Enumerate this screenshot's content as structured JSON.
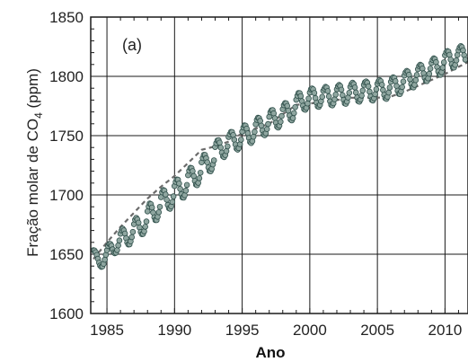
{
  "chart_data": {
    "type": "scatter",
    "panel_label": "(a)",
    "xlabel": "Ano",
    "ylabel": "Fração molar de CO",
    "ylabel_subscript": "4",
    "ylabel_unit": " (ppm)",
    "xlim": [
      1983.8,
      2011.7
    ],
    "ylim": [
      1600,
      1850
    ],
    "x_ticks": [
      1985,
      1990,
      1995,
      2000,
      2005,
      2010
    ],
    "y_ticks": [
      1600,
      1650,
      1700,
      1750,
      1800,
      1850
    ],
    "x_tick_labels": [
      "1985",
      "1990",
      "1995",
      "2000",
      "2005",
      "2010"
    ],
    "y_tick_labels": [
      "1600",
      "1650",
      "1700",
      "1750",
      "1800",
      "1850"
    ],
    "grid": true,
    "seasonal_amplitude_ppm": 8,
    "series": [
      {
        "role": "deseasonalized trend",
        "style": "dashed",
        "color": "#6b6b6b",
        "x": [
          1984.0,
          1985.0,
          1986.0,
          1987.0,
          1988.0,
          1989.0,
          1990.0,
          1991.0,
          1992.0,
          1993.0,
          1994.0,
          1995.0,
          1996.0,
          1997.0,
          1998.0,
          1999.0,
          2000.0,
          2001.0,
          2002.0,
          2003.0,
          2004.0,
          2005.0,
          2006.0,
          2007.0,
          2008.0,
          2009.0,
          2010.0,
          2011.0,
          2011.7
        ],
        "y": [
          1646,
          1660,
          1673,
          1685,
          1697,
          1707,
          1716,
          1727,
          1738,
          1741,
          1745,
          1752,
          1756,
          1760,
          1768,
          1776,
          1777,
          1779,
          1780,
          1782,
          1782,
          1782,
          1783,
          1787,
          1792,
          1797,
          1802,
          1808,
          1812
        ]
      },
      {
        "role": "monthly observations",
        "style": "markers",
        "color": "#8fa6a0",
        "x_start": 1984.0,
        "x_step": 0.0833333,
        "y": [
          1653.3,
          1653.1,
          1651.7,
          1649.3,
          1646.1,
          1642.9,
          1640.4,
          1639.3,
          1639.7,
          1641.9,
          1645.4,
          1649.5,
          1653.3,
          1656.9,
          1658.7,
          1658.7,
          1657.2,
          1654.1,
          1651.6,
          1650.8,
          1651.3,
          1653.5,
          1657.4,
          1661.6,
          1667.3,
          1670.1,
          1671.5,
          1670.1,
          1667.4,
          1663.5,
          1659.9,
          1658.2,
          1658.3,
          1660.8,
          1664.4,
          1668.8,
          1675.3,
          1679.1,
          1680.7,
          1679.4,
          1676.6,
          1672.5,
          1668.8,
          1666.9,
          1667.1,
          1669.3,
          1673.2,
          1677.6,
          1686.1,
          1690.2,
          1692.7,
          1692.2,
          1689.4,
          1685.1,
          1681.1,
          1678.8,
          1678.8,
          1681.6,
          1685.4,
          1689.9,
          1698.1,
          1702.2,
          1704.2,
          1703.6,
          1700.4,
          1696.0,
          1691.5,
          1688.8,
          1688.3,
          1690.4,
          1694.1,
          1698.8,
          1707.5,
          1711.0,
          1713.0,
          1712.8,
          1709.6,
          1705.1,
          1700.7,
          1697.9,
          1697.7,
          1699.8,
          1703.6,
          1708.4,
          1716.6,
          1720.4,
          1722.9,
          1722.6,
          1720.1,
          1715.9,
          1711.8,
          1708.6,
          1708.2,
          1710.2,
          1714.1,
          1718.7,
          1727.5,
          1731.1,
          1733.8,
          1733.8,
          1731.0,
          1727.5,
          1723.2,
          1720.2,
          1719.9,
          1722.0,
          1725.7,
          1729.2,
          1740.4,
          1743.6,
          1745.9,
          1746.1,
          1744.1,
          1739.9,
          1735.7,
          1732.6,
          1731.9,
          1733.6,
          1737.0,
          1741.0,
          1748.9,
          1751.2,
          1753.1,
          1753.0,
          1750.5,
          1746.5,
          1742.6,
          1739.1,
          1738.2,
          1739.5,
          1742.7,
          1746.6,
          1753.4,
          1756.9,
          1758.6,
          1758.4,
          1755.9,
          1752.0,
          1748.0,
          1744.7,
          1743.8,
          1745.4,
          1749.1,
          1753.2,
          1759.6,
          1763.3,
          1765.1,
          1764.8,
          1762.4,
          1758.4,
          1754.3,
          1751.0,
          1750.3,
          1752.0,
          1755.5,
          1759.8,
          1765.9,
          1769.7,
          1771.4,
          1771.5,
          1768.8,
          1764.7,
          1760.8,
          1757.5,
          1756.8,
          1758.4,
          1761.7,
          1766.5,
          1772.3,
          1775.7,
          1777.4,
          1777.3,
          1775.1,
          1771.0,
          1767.0,
          1763.6,
          1762.9,
          1764.8,
          1769.0,
          1774.0,
          1780.2,
          1783.6,
          1786.0,
          1785.8,
          1783.3,
          1779.1,
          1775.2,
          1772.3,
          1771.8,
          1773.4,
          1777.1,
          1781.3,
          1786.4,
          1789.0,
          1789.8,
          1789.1,
          1786.0,
          1781.7,
          1777.7,
          1774.7,
          1774.3,
          1775.9,
          1779.0,
          1782.7,
          1787.8,
          1789.6,
          1791.1,
          1790.5,
          1787.6,
          1783.1,
          1778.9,
          1776.0,
          1775.5,
          1777.3,
          1780.6,
          1784.6,
          1789.1,
          1791.6,
          1792.7,
          1791.9,
          1788.7,
          1784.2,
          1780.2,
          1777.3,
          1776.8,
          1778.7,
          1782.1,
          1786.1,
          1791.1,
          1793.4,
          1794.6,
          1793.5,
          1790.6,
          1786.4,
          1782.2,
          1779.2,
          1778.6,
          1780.4,
          1783.8,
          1788.0,
          1792.8,
          1795.0,
          1795.7,
          1794.6,
          1791.5,
          1787.1,
          1783.0,
          1780.1,
          1779.6,
          1781.5,
          1784.9,
          1789.1,
          1793.7,
          1795.8,
          1796.8,
          1795.9,
          1792.9,
          1788.5,
          1784.5,
          1781.6,
          1781.0,
          1782.7,
          1786.3,
          1790.5,
          1795.4,
          1798.0,
          1799.2,
          1798.6,
          1795.9,
          1791.9,
          1787.9,
          1785.3,
          1785.1,
          1787.3,
          1791.0,
          1795.6,
          1800.7,
          1803.3,
          1804.6,
          1804.0,
          1801.4,
          1797.4,
          1793.5,
          1790.9,
          1790.7,
          1792.8,
          1796.8,
          1801.2,
          1806.0,
          1808.6,
          1809.8,
          1809.2,
          1806.6,
          1802.6,
          1798.7,
          1796.1,
          1796.0,
          1798.3,
          1802.1,
          1806.5,
          1811.3,
          1813.9,
          1815.2,
          1814.6,
          1812.0,
          1807.9,
          1804.1,
          1801.4,
          1801.3,
          1803.5,
          1807.3,
          1811.8,
          1817.7,
          1820.2,
          1821.4,
          1820.8,
          1818.2,
          1814.2,
          1810.2,
          1807.6,
          1807.4,
          1809.7,
          1813.5,
          1818.0,
          1821.9,
          1824.4,
          1825.5,
          1824.7,
          1822.0,
          1817.9,
          1814.1,
          1811.3,
          1811.2,
          1813.4,
          1817.2,
          1821.7
        ]
      }
    ]
  }
}
